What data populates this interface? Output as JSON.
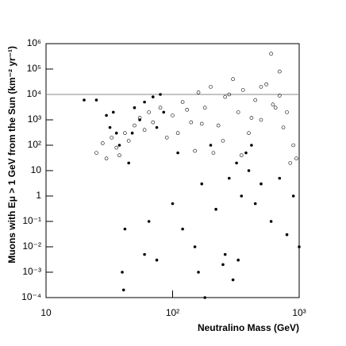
{
  "chart_data": {
    "type": "scatter",
    "xlabel": "Neutralino Mass (GeV)",
    "ylabel": "Muons with Eμ > 1 GeV from the Sun (km⁻² yr⁻¹)",
    "xlog": true,
    "ylog": true,
    "xlim": [
      10,
      1000
    ],
    "ylim": [
      0.0001,
      1000000
    ],
    "xticks": [
      10,
      {
        "value": 100,
        "label": "10²"
      },
      {
        "value": 1000,
        "label": "10³"
      }
    ],
    "yticks": [
      {
        "value": 0.0001,
        "label": "10⁻⁴"
      },
      {
        "value": 0.001,
        "label": "10⁻³"
      },
      {
        "value": 0.01,
        "label": "10⁻²"
      },
      {
        "value": 0.1,
        "label": "10⁻¹"
      },
      1,
      10,
      {
        "value": 100,
        "label": "10²"
      },
      {
        "value": 1000,
        "label": "10³"
      },
      {
        "value": 10000,
        "label": "10⁴"
      },
      {
        "value": 100000,
        "label": "10⁵"
      },
      {
        "value": 1000000,
        "label": "10⁶"
      }
    ],
    "hline": 10000,
    "series": [
      {
        "marker": "open",
        "color": "#000000",
        "x": [
          25,
          28,
          30,
          33,
          36,
          38,
          42,
          45,
          50,
          55,
          60,
          65,
          70,
          80,
          90,
          100,
          120,
          140,
          160,
          180,
          200,
          230,
          260,
          300,
          330,
          360,
          400,
          450,
          500,
          550,
          600,
          650,
          700,
          750,
          800,
          900,
          950,
          150,
          250,
          350,
          500,
          700,
          110,
          130,
          170,
          210,
          280,
          420,
          620,
          850
        ],
        "values": [
          50,
          120,
          30,
          200,
          80,
          40,
          300,
          150,
          600,
          1200,
          400,
          2000,
          800,
          3000,
          200,
          1500,
          5000,
          800,
          12000,
          3000,
          20000,
          600,
          8000,
          40000,
          2000,
          15000,
          300,
          6000,
          1000,
          25000,
          400000,
          3000,
          9000,
          500,
          2000,
          100,
          30,
          60,
          150,
          40,
          20000,
          80000,
          300,
          2500,
          700,
          50,
          10000,
          1200,
          4000,
          20
        ]
      },
      {
        "marker": "filled",
        "color": "#000000",
        "x": [
          20,
          25,
          30,
          32,
          34,
          36,
          38,
          40,
          41,
          42,
          45,
          48,
          50,
          55,
          60,
          65,
          70,
          75,
          80,
          85,
          100,
          110,
          120,
          150,
          170,
          180,
          200,
          220,
          250,
          280,
          300,
          320,
          350,
          380,
          400,
          450,
          500,
          600,
          700,
          800,
          900,
          1000,
          160,
          260,
          330,
          420,
          60,
          75
        ],
        "values": [
          6000,
          6000,
          1500,
          500,
          2000,
          300,
          100,
          0.001,
          0.0002,
          0.05,
          20,
          300,
          3000,
          1000,
          5000,
          0.1,
          8000,
          0.003,
          10000,
          2000,
          0.5,
          50,
          0.05,
          0.01,
          3,
          0.0001,
          100,
          0.3,
          0.002,
          5,
          0.0005,
          20,
          1,
          50,
          10,
          0.5,
          3,
          0.1,
          5,
          0.03,
          1,
          0.01,
          0.001,
          0.005,
          0.003,
          100,
          0.005,
          500
        ]
      }
    ]
  }
}
